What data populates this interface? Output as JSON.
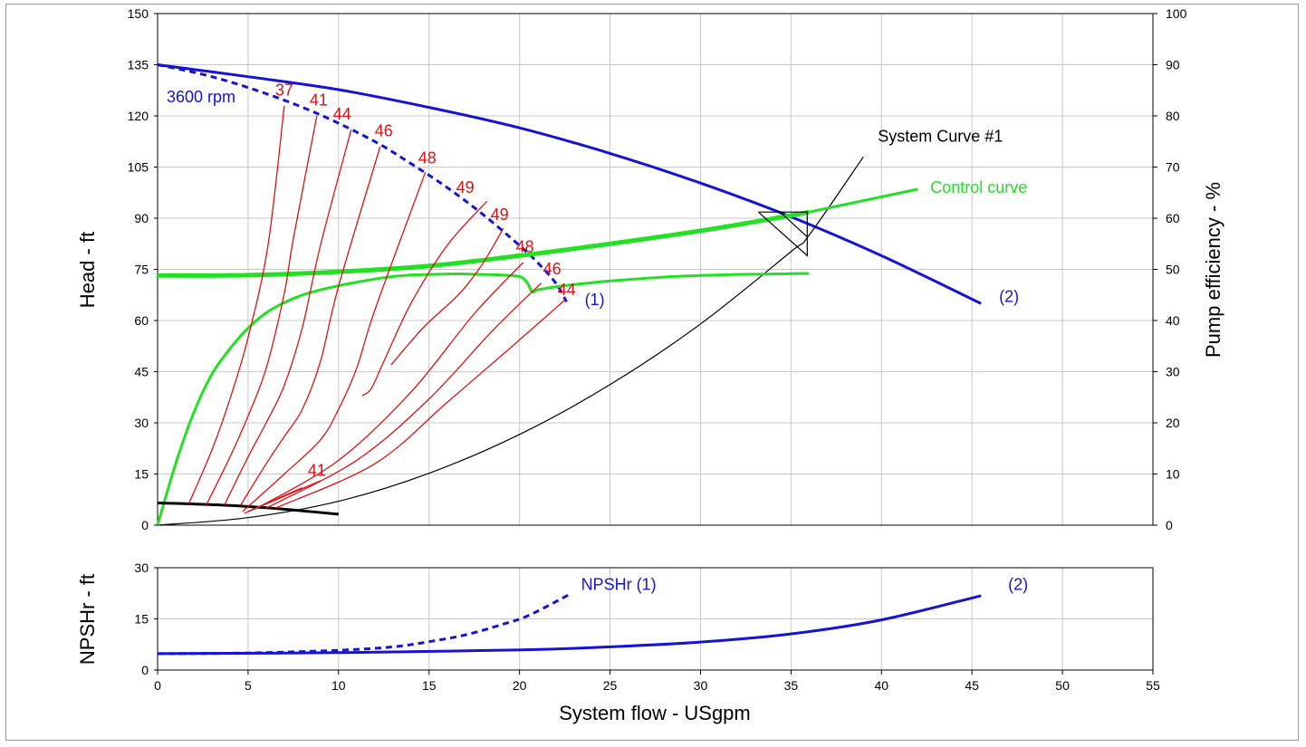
{
  "chart_data": [
    {
      "type": "line",
      "title": "",
      "xlabel": "System flow - USgpm",
      "ylabel": "Head - ft",
      "y2label": "Pump efficiency - %",
      "xlim": [
        0,
        55
      ],
      "ylim": [
        0,
        150
      ],
      "y2lim": [
        0,
        100
      ],
      "grid": true,
      "x_ticks": [
        0,
        5,
        10,
        15,
        20,
        25,
        30,
        35,
        40,
        45,
        50,
        55
      ],
      "y_ticks": [
        0,
        15,
        30,
        45,
        60,
        75,
        90,
        105,
        120,
        135,
        150
      ],
      "y2_ticks": [
        0,
        10,
        20,
        30,
        40,
        50,
        60,
        70,
        80,
        90,
        100
      ],
      "colors": {
        "pump": "#1414d2",
        "efficiency": "#e01010",
        "control": "#22e022",
        "system": "#000000"
      },
      "annotations": [
        {
          "text": "3600 rpm",
          "x": 0.5,
          "y": 124,
          "color": "#1414d2"
        },
        {
          "text": "(1)",
          "x": 23.6,
          "y": 64.5,
          "color": "#1414d2"
        },
        {
          "text": "(2)",
          "x": 46.5,
          "y": 65.5,
          "color": "#1414d2"
        },
        {
          "text": "System Curve #1",
          "x": 39.8,
          "y": 112.5,
          "color": "#000000"
        },
        {
          "text": "Control curve",
          "x": 42.7,
          "y": 97.5,
          "color": "#22e022"
        }
      ],
      "series": [
        {
          "style": "pump-solid",
          "x": [
            0,
            5,
            10,
            15,
            20,
            25,
            30,
            35,
            40,
            45.5
          ],
          "y": [
            135,
            131.5,
            127.7,
            122.5,
            116.5,
            109,
            100.3,
            90.4,
            79,
            65
          ]
        },
        {
          "style": "pump-dashed",
          "x": [
            0,
            3,
            6,
            9,
            12,
            14,
            16,
            18,
            20,
            21,
            22,
            22.6
          ],
          "y": [
            135,
            131.5,
            126.5,
            120.3,
            112.5,
            106,
            99,
            91,
            82,
            77,
            71,
            65.5
          ]
        },
        {
          "style": "system",
          "x": [
            0,
            5,
            10,
            15,
            20,
            25,
            30,
            35,
            36,
            39
          ],
          "y": [
            0,
            2.2,
            7,
            15.2,
            26.6,
            41.2,
            59,
            80.2,
            85,
            108
          ]
        },
        {
          "style": "control-thick",
          "x": [
            0,
            5,
            10,
            15,
            20,
            25,
            30,
            35,
            36
          ],
          "y": [
            73.2,
            73.3,
            74.3,
            76,
            79,
            82.5,
            86.3,
            90.8,
            91.8
          ]
        },
        {
          "style": "control-thin",
          "x": [
            36,
            42
          ],
          "y": [
            91.8,
            98.5
          ]
        },
        {
          "style": "efficiency-3600",
          "x": [
            0,
            1,
            2,
            3,
            4,
            5,
            6,
            7,
            8,
            9,
            10,
            11,
            12,
            13,
            14,
            15,
            16,
            17,
            18,
            19,
            20,
            20.4,
            20.7,
            21,
            22,
            24,
            26,
            28,
            30,
            32,
            34,
            36
          ],
          "y": [
            0,
            12,
            22,
            29.5,
            34.5,
            38.5,
            41.5,
            43.5,
            45,
            46,
            46.8,
            47.5,
            48.1,
            48.6,
            48.9,
            49,
            49.1,
            49.1,
            49,
            48.9,
            48.6,
            47.5,
            45.6,
            46,
            46.6,
            47.4,
            48,
            48.5,
            48.8,
            49,
            49.1,
            49.2
          ]
        },
        {
          "style": "black-thick",
          "x": [
            0,
            2,
            4,
            6,
            8,
            10
          ],
          "y": [
            6.5,
            6.2,
            5.8,
            5.1,
            4.2,
            3.2
          ]
        },
        {
          "style": "iso",
          "x": [
            1.7,
            3,
            4,
            5,
            6.1,
            7
          ],
          "y": [
            6,
            22,
            37,
            55,
            82,
            123
          ]
        },
        {
          "style": "iso",
          "x": [
            2.7,
            4,
            5,
            6,
            7,
            7.5,
            8.8
          ],
          "y": [
            6,
            20,
            32,
            46,
            68,
            84,
            120
          ]
        },
        {
          "style": "iso",
          "x": [
            3.7,
            5,
            6,
            7,
            8,
            9,
            10.7
          ],
          "y": [
            6,
            20,
            30,
            41,
            58,
            82,
            116
          ]
        },
        {
          "style": "iso",
          "x": [
            4.6,
            6,
            7,
            8,
            9,
            10,
            12.3
          ],
          "y": [
            6,
            18,
            26,
            34,
            48,
            70,
            111
          ]
        },
        {
          "style": "iso",
          "x": [
            4.7,
            7,
            9,
            10,
            11,
            12,
            14.8
          ],
          "y": [
            4,
            15,
            25,
            34,
            46,
            63,
            103.5
          ]
        },
        {
          "style": "iso",
          "x": [
            11.3,
            11.8,
            12.5,
            14,
            16,
            18.2
          ],
          "y": [
            38,
            40,
            48,
            65,
            82,
            95
          ]
        },
        {
          "style": "iso",
          "x": [
            12.9,
            14.7,
            16.7,
            18,
            19.1
          ],
          "y": [
            47,
            58,
            68,
            77,
            87
          ]
        },
        {
          "style": "iso",
          "x": [
            5.5,
            10,
            14,
            17.5,
            20.2
          ],
          "y": [
            5,
            19,
            39,
            62,
            77
          ]
        },
        {
          "style": "iso",
          "x": [
            6,
            11,
            15,
            18.5,
            21.2
          ],
          "y": [
            5,
            19,
            37,
            57,
            71
          ]
        },
        {
          "style": "iso",
          "x": [
            6.5,
            12,
            16,
            19.5,
            22.5
          ],
          "y": [
            5,
            18,
            36,
            52,
            66
          ]
        },
        {
          "style": "iso",
          "x": [
            4.8,
            9
          ],
          "y": [
            3.5,
            13
          ]
        },
        {
          "style": "iso",
          "x": [
            5,
            8
          ],
          "y": [
            4,
            11
          ]
        }
      ],
      "efficiency_labels": [
        {
          "text": "37",
          "x": 7,
          "y": 126
        },
        {
          "text": "41",
          "x": 8.9,
          "y": 123
        },
        {
          "text": "44",
          "x": 10.2,
          "y": 119
        },
        {
          "text": "46",
          "x": 12.5,
          "y": 114
        },
        {
          "text": "48",
          "x": 14.9,
          "y": 106
        },
        {
          "text": "49",
          "x": 17,
          "y": 97.5
        },
        {
          "text": "49",
          "x": 18.9,
          "y": 89.5
        },
        {
          "text": "48",
          "x": 20.3,
          "y": 80
        },
        {
          "text": "46",
          "x": 21.8,
          "y": 73.5
        },
        {
          "text": "44",
          "x": 22.6,
          "y": 67.5
        },
        {
          "text": "41",
          "x": 8.8,
          "y": 14.5
        }
      ],
      "triangle": {
        "x": [
          33.2,
          35.9,
          35.9,
          33.2
        ],
        "y": [
          91.8,
          91.8,
          79,
          91.8
        ]
      },
      "triangle_stroke": {
        "x": [
          34.4,
          35.9
        ],
        "y": [
          91.8,
          84.5
        ]
      }
    },
    {
      "type": "line",
      "title": "",
      "xlabel": "System flow - USgpm",
      "ylabel": "NPSHr - ft",
      "xlim": [
        0,
        55
      ],
      "ylim": [
        0,
        30
      ],
      "grid": true,
      "y_ticks": [
        0,
        15,
        30
      ],
      "annotations": [
        {
          "text": "NPSHr (1)",
          "x": 23.4,
          "y": 23.5,
          "color": "#1414d2"
        },
        {
          "text": "(2)",
          "x": 47,
          "y": 23.5,
          "color": "#1414d2"
        }
      ],
      "series": [
        {
          "style": "npshr-dashed",
          "x": [
            0,
            5,
            10,
            13,
            15,
            17,
            19,
            20.5,
            22.7
          ],
          "y": [
            4.8,
            5,
            5.8,
            6.8,
            8.3,
            10.3,
            13.3,
            16,
            22
          ]
        },
        {
          "style": "npshr-solid",
          "x": [
            0,
            10,
            20,
            25,
            30,
            35,
            40,
            45.5
          ],
          "y": [
            4.8,
            5.1,
            5.9,
            6.8,
            8.2,
            10.6,
            14.7,
            21.8
          ]
        }
      ]
    }
  ]
}
